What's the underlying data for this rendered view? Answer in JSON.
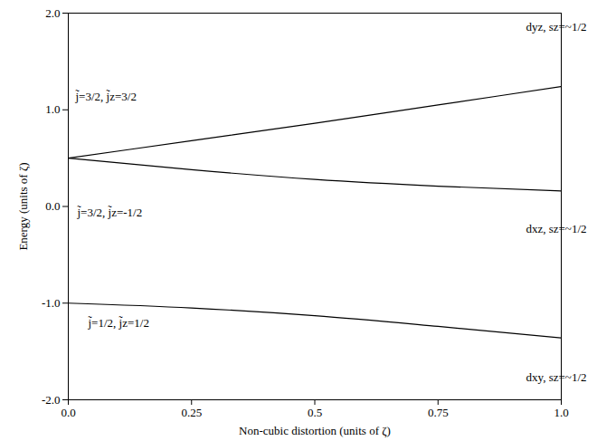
{
  "chart_data": {
    "type": "line",
    "x_label": "Non-cubic distortion (units of ζ)",
    "y_label": "Energy (units of ζ)",
    "x": [
      0,
      0.25,
      0.5,
      0.75,
      1
    ],
    "xlim": [
      0,
      1
    ],
    "xticks": [
      {
        "value": 0,
        "label": "0.0"
      },
      0.25,
      0.5,
      0.75,
      {
        "value": 1,
        "label": "1.0"
      }
    ],
    "ylim": [
      -2,
      2
    ],
    "yticks": [
      {
        "value": -2,
        "label": "-2.0"
      },
      {
        "value": -1,
        "label": "-1.0"
      },
      {
        "value": 0,
        "label": "0.0"
      },
      {
        "value": 1,
        "label": "1.0"
      },
      {
        "value": 2,
        "label": "2.0"
      }
    ],
    "grid": false,
    "series": [
      {
        "start_label": "j̃=3/2, j̃z=3/2",
        "end_label": "dyz, sz=~1/2",
        "color": "#000000",
        "values": [
          0.5,
          0.68,
          0.86,
          1.05,
          1.24
        ]
      },
      {
        "start_label": "j̃=3/2, j̃z=-1/2",
        "end_label": "dxz, sz=~1/2",
        "color": "#000000",
        "values": [
          0.5,
          0.38,
          0.28,
          0.21,
          0.16
        ]
      },
      {
        "start_label": "j̃=1/2, j̃z=1/2",
        "end_label": "dxy, sz=~1/2",
        "color": "#000000",
        "values": [
          -1.0,
          -1.05,
          -1.13,
          -1.24,
          -1.36
        ]
      }
    ]
  }
}
